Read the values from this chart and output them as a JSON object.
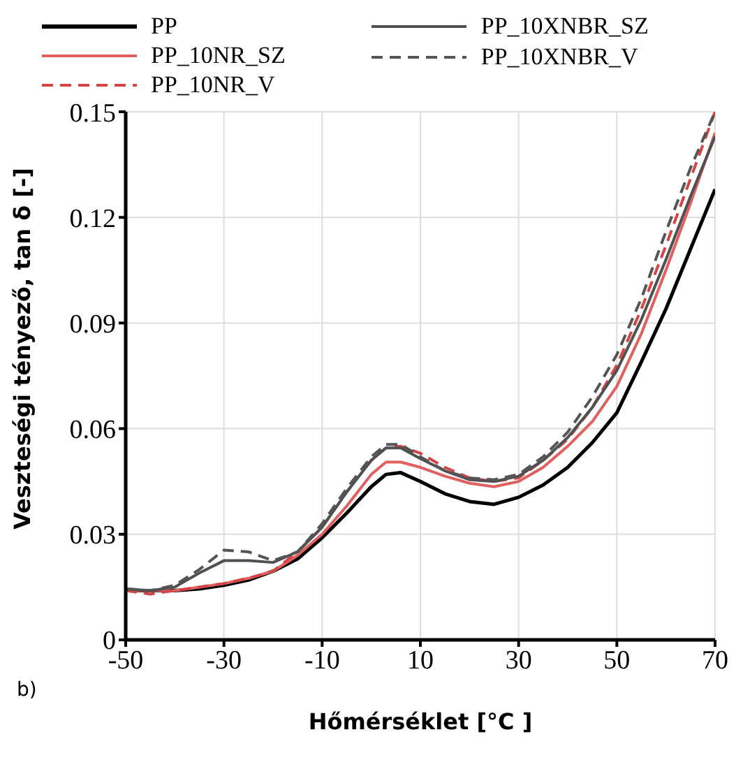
{
  "chart_data": {
    "type": "line",
    "xlabel": "Hőmérséklet [°C ]",
    "ylabel": "Veszteségi tényező, tan δ [-]",
    "annotations": [
      "b)"
    ],
    "xlim": [
      -50,
      70
    ],
    "xticks": [
      -50,
      -30,
      -10,
      10,
      30,
      50,
      70
    ],
    "ylim": [
      0,
      0.15
    ],
    "yticks": [
      0,
      0.03,
      0.06,
      0.09,
      0.12,
      0.15
    ],
    "grid": true,
    "legend": "top",
    "x": [
      -50,
      -45,
      -40,
      -35,
      -30,
      -25,
      -20,
      -15,
      -10,
      -5,
      0,
      3,
      6,
      10,
      15,
      20,
      25,
      30,
      35,
      40,
      45,
      50,
      55,
      60,
      65,
      70
    ],
    "series": [
      {
        "name": "PP",
        "color": "#000000",
        "line_style": "solid",
        "values": [
          0.014,
          0.014,
          0.014,
          0.0145,
          0.0155,
          0.017,
          0.0195,
          0.023,
          0.029,
          0.036,
          0.0435,
          0.047,
          0.0475,
          0.045,
          0.0415,
          0.0393,
          0.0385,
          0.0405,
          0.044,
          0.049,
          0.056,
          0.0645,
          0.079,
          0.094,
          0.111,
          0.128
        ]
      },
      {
        "name": "PP_10NR_SZ",
        "color": "#e06060",
        "line_style": "solid",
        "values": [
          0.014,
          0.014,
          0.014,
          0.015,
          0.016,
          0.0175,
          0.0195,
          0.024,
          0.03,
          0.038,
          0.047,
          0.0505,
          0.0505,
          0.049,
          0.0465,
          0.0445,
          0.0435,
          0.045,
          0.049,
          0.055,
          0.062,
          0.072,
          0.087,
          0.105,
          0.124,
          0.144
        ]
      },
      {
        "name": "PP_10NR_V",
        "color": "#d64545",
        "line_style": "dashed",
        "values": [
          0.014,
          0.013,
          0.014,
          0.015,
          0.016,
          0.0175,
          0.0195,
          0.025,
          0.032,
          0.042,
          0.051,
          0.0545,
          0.055,
          0.053,
          0.049,
          0.046,
          0.045,
          0.046,
          0.051,
          0.057,
          0.066,
          0.078,
          0.094,
          0.112,
          0.131,
          0.15
        ]
      },
      {
        "name": "PP_10XNBR_SZ",
        "color": "#505050",
        "line_style": "solid",
        "values": [
          0.0145,
          0.014,
          0.015,
          0.019,
          0.0225,
          0.0225,
          0.022,
          0.025,
          0.032,
          0.042,
          0.051,
          0.0545,
          0.0545,
          0.0515,
          0.048,
          0.0455,
          0.045,
          0.0465,
          0.051,
          0.0575,
          0.066,
          0.0765,
          0.091,
          0.108,
          0.126,
          0.143
        ]
      },
      {
        "name": "PP_10XNBR_V",
        "color": "#555555",
        "line_style": "dashed",
        "values": [
          0.0145,
          0.014,
          0.0155,
          0.02,
          0.0255,
          0.025,
          0.0225,
          0.025,
          0.033,
          0.043,
          0.052,
          0.0555,
          0.0555,
          0.052,
          0.048,
          0.046,
          0.0455,
          0.047,
          0.052,
          0.059,
          0.069,
          0.081,
          0.097,
          0.116,
          0.134,
          0.15
        ]
      }
    ]
  }
}
